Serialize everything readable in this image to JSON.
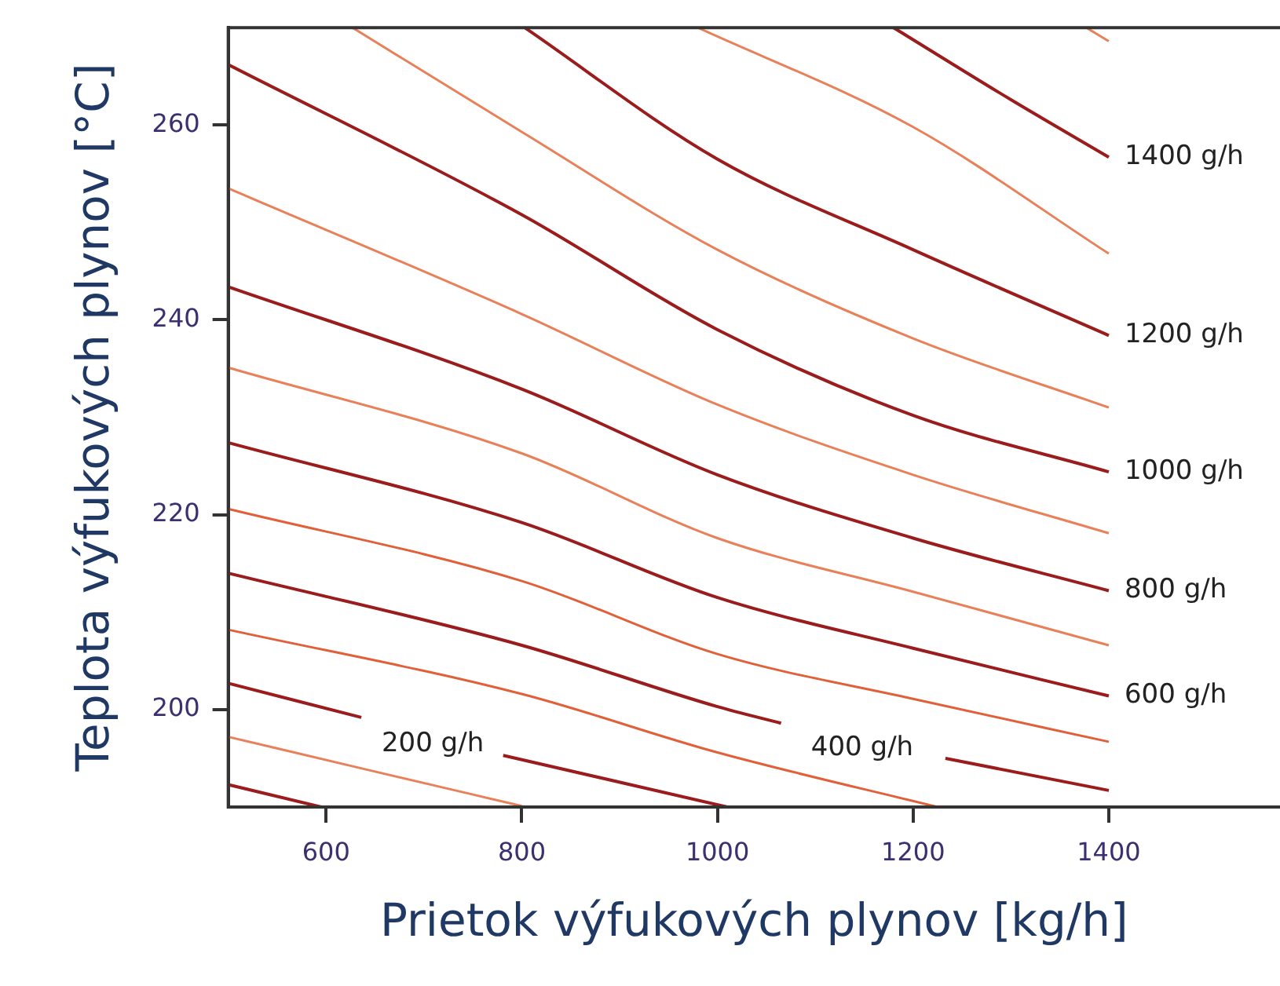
{
  "chart_data": {
    "type": "line",
    "xlabel": "Prietok výfukových plynov [kg/h]",
    "ylabel": "Teplota výfukových plynov [°C]",
    "xlim": [
      500,
      1575
    ],
    "xticks": [
      600,
      800,
      1000,
      1200,
      1400
    ],
    "ylim": [
      190,
      270
    ],
    "yticks": [
      200,
      220,
      240,
      260
    ],
    "grid": false,
    "legend": false,
    "marker": "none",
    "line_style": "solid",
    "series": [
      {
        "color": "#9b1c1c",
        "x": [
          500,
          595
        ],
        "values": [
          192.3,
          190
        ]
      },
      {
        "color": "#e8805a",
        "x": [
          500,
          639,
          800
        ],
        "values": [
          197.2,
          193.9,
          190.1
        ]
      },
      {
        "name": "200 g/h",
        "color": "#9b1c1c",
        "x": [
          500,
          636,
          709,
          781,
          1010
        ],
        "values": [
          202.7,
          199.2,
          null,
          195.3,
          190
        ]
      },
      {
        "color": "#e0603a",
        "x": [
          500,
          800,
          1000,
          1225
        ],
        "values": [
          208.2,
          201.6,
          195.6,
          190
        ]
      },
      {
        "name": "400 g/h",
        "color": "#9b1c1c",
        "x": [
          500,
          800,
          1000,
          1065,
          1148,
          1233,
          1400
        ],
        "values": [
          214.0,
          206.6,
          200.3,
          198.6,
          null,
          195.0,
          191.7
        ]
      },
      {
        "color": "#e0603a",
        "x": [
          500,
          800,
          1000,
          1200,
          1400
        ],
        "values": [
          220.6,
          213.2,
          205.7,
          201.1,
          196.7
        ]
      },
      {
        "name": "600 g/h",
        "color": "#9b1c1c",
        "x": [
          500,
          800,
          1000,
          1200,
          1400
        ],
        "values": [
          227.4,
          219.2,
          211.5,
          206.3,
          201.4
        ]
      },
      {
        "color": "#e8805a",
        "x": [
          500,
          800,
          1000,
          1200,
          1400
        ],
        "values": [
          235.1,
          226.3,
          217.6,
          212.1,
          206.6
        ]
      },
      {
        "name": "800 g/h",
        "color": "#9b1c1c",
        "x": [
          500,
          800,
          1000,
          1200,
          1400
        ],
        "values": [
          243.4,
          232.9,
          224.1,
          217.6,
          212.2
        ]
      },
      {
        "color": "#e8805a",
        "x": [
          500,
          800,
          1000,
          1200,
          1400
        ],
        "values": [
          253.5,
          240.6,
          231.3,
          224.1,
          218.1
        ]
      },
      {
        "name": "1000 g/h",
        "color": "#9b1c1c",
        "x": [
          500,
          800,
          1000,
          1200,
          1400
        ],
        "values": [
          266.2,
          250.8,
          239.0,
          230.2,
          224.4
        ]
      },
      {
        "color": "#e8805a",
        "x": [
          627,
          800,
          1000,
          1200,
          1400
        ],
        "values": [
          270,
          259.3,
          247.2,
          238.1,
          231.0
        ]
      },
      {
        "name": "1200 g/h",
        "color": "#9b1c1c",
        "x": [
          803,
          1000,
          1200,
          1400
        ],
        "values": [
          270,
          256.5,
          247.2,
          238.4
        ]
      },
      {
        "color": "#e8805a",
        "x": [
          980,
          1200,
          1400
        ],
        "values": [
          270,
          259.8,
          246.8
        ]
      },
      {
        "name": "1400 g/h",
        "color": "#9b1c1c",
        "x": [
          1180,
          1300,
          1400
        ],
        "values": [
          270,
          262.6,
          256.7
        ]
      },
      {
        "color": "#e8805a",
        "x": [
          1377,
          1400
        ],
        "values": [
          270,
          268.6
        ]
      }
    ]
  }
}
